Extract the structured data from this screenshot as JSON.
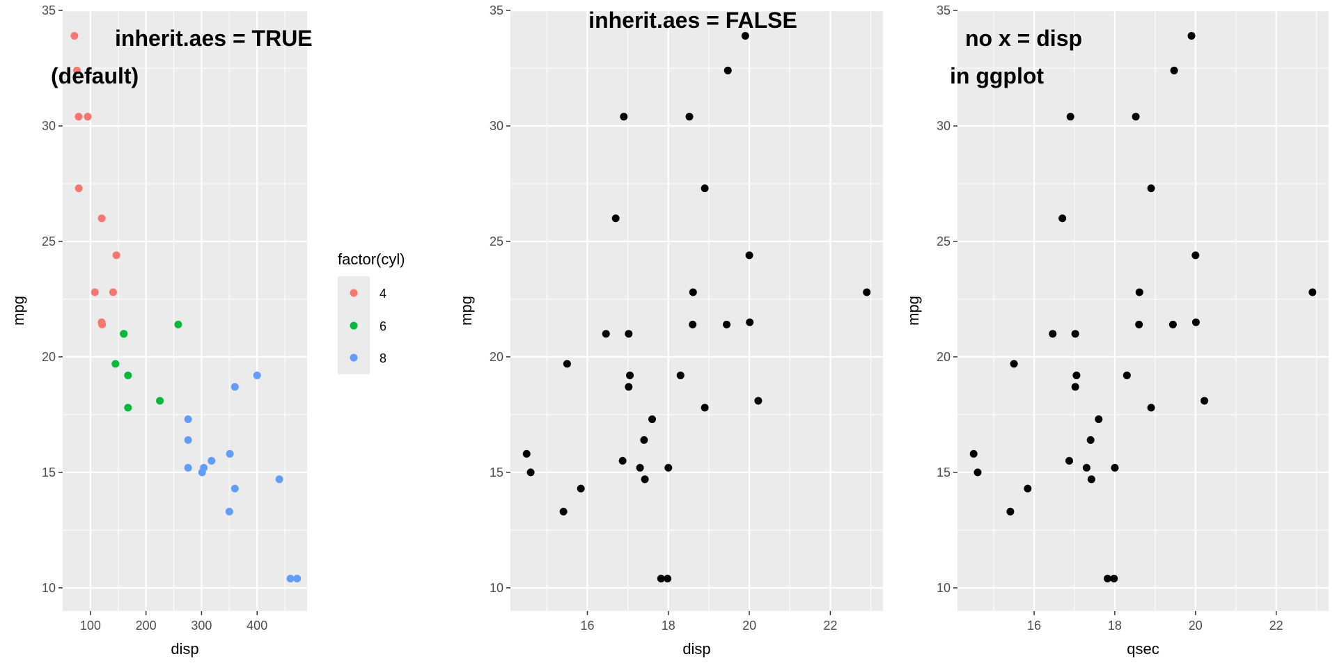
{
  "chart_data": [
    {
      "type": "scatter",
      "xlabel": "disp",
      "ylabel": "mpg",
      "xlim": [
        50,
        490
      ],
      "ylim": [
        9.0,
        35.0
      ],
      "x_ticks": [
        100,
        200,
        300,
        400
      ],
      "y_ticks": [
        10,
        15,
        20,
        25,
        30,
        35
      ],
      "grid": true,
      "annotation_lines": [
        "inherit.aes = TRUE",
        "(default)"
      ],
      "legend": {
        "title": "factor(cyl)",
        "position": "right",
        "entries": [
          {
            "label": "4",
            "color": "#F8766D"
          },
          {
            "label": "6",
            "color": "#00BA38"
          },
          {
            "label": "8",
            "color": "#619CFF"
          }
        ]
      },
      "series": [
        {
          "name": "4",
          "color": "#F8766D",
          "points": [
            [
              71.1,
              33.9
            ],
            [
              75.7,
              32.4
            ],
            [
              78.7,
              30.4
            ],
            [
              95.1,
              30.4
            ],
            [
              79.0,
              27.3
            ],
            [
              120.3,
              26.0
            ],
            [
              146.7,
              24.4
            ],
            [
              108.0,
              22.8
            ],
            [
              140.8,
              22.8
            ],
            [
              120.1,
              21.5
            ],
            [
              121.0,
              21.4
            ]
          ]
        },
        {
          "name": "6",
          "color": "#00BA38",
          "points": [
            [
              160.0,
              21.0
            ],
            [
              160.0,
              21.0
            ],
            [
              258.0,
              21.4
            ],
            [
              225.0,
              18.1
            ],
            [
              167.6,
              19.2
            ],
            [
              167.6,
              17.8
            ],
            [
              145.0,
              19.7
            ]
          ]
        },
        {
          "name": "8",
          "color": "#619CFF",
          "points": [
            [
              360.0,
              18.7
            ],
            [
              360.0,
              14.3
            ],
            [
              275.8,
              16.4
            ],
            [
              275.8,
              17.3
            ],
            [
              275.8,
              15.2
            ],
            [
              472.0,
              10.4
            ],
            [
              460.0,
              10.4
            ],
            [
              440.0,
              14.7
            ],
            [
              318.0,
              15.5
            ],
            [
              304.0,
              15.2
            ],
            [
              350.0,
              13.3
            ],
            [
              400.0,
              19.2
            ],
            [
              351.0,
              15.8
            ],
            [
              301.0,
              15.0
            ]
          ]
        }
      ]
    },
    {
      "type": "scatter",
      "xlabel": "disp",
      "ylabel": "mpg",
      "xlim": [
        14.1,
        23.3
      ],
      "ylim": [
        9.0,
        35.0
      ],
      "x_ticks": [
        16,
        18,
        20,
        22
      ],
      "y_ticks": [
        10,
        15,
        20,
        25,
        30,
        35
      ],
      "grid": true,
      "annotation_lines": [
        "inherit.aes = FALSE"
      ],
      "series": [
        {
          "name": "",
          "color": "#000000",
          "points": [
            [
              16.46,
              21.0
            ],
            [
              17.02,
              21.0
            ],
            [
              18.61,
              22.8
            ],
            [
              19.44,
              21.4
            ],
            [
              17.02,
              18.7
            ],
            [
              20.22,
              18.1
            ],
            [
              15.84,
              14.3
            ],
            [
              20.0,
              24.4
            ],
            [
              22.9,
              22.8
            ],
            [
              18.3,
              19.2
            ],
            [
              18.9,
              17.8
            ],
            [
              17.4,
              16.4
            ],
            [
              17.6,
              17.3
            ],
            [
              18.0,
              15.2
            ],
            [
              17.98,
              10.4
            ],
            [
              17.82,
              10.4
            ],
            [
              17.42,
              14.7
            ],
            [
              19.47,
              32.4
            ],
            [
              18.52,
              30.4
            ],
            [
              19.9,
              33.9
            ],
            [
              20.01,
              21.5
            ],
            [
              16.87,
              15.5
            ],
            [
              17.3,
              15.2
            ],
            [
              15.41,
              13.3
            ],
            [
              17.05,
              19.2
            ],
            [
              18.9,
              27.3
            ],
            [
              16.7,
              26.0
            ],
            [
              16.9,
              30.4
            ],
            [
              14.5,
              15.8
            ],
            [
              15.5,
              19.7
            ],
            [
              14.6,
              15.0
            ],
            [
              18.6,
              21.4
            ]
          ]
        }
      ]
    },
    {
      "type": "scatter",
      "xlabel": "qsec",
      "ylabel": "mpg",
      "xlim": [
        14.1,
        23.3
      ],
      "ylim": [
        9.0,
        35.0
      ],
      "x_ticks": [
        16,
        18,
        20,
        22
      ],
      "y_ticks": [
        10,
        15,
        20,
        25,
        30,
        35
      ],
      "grid": true,
      "annotation_lines": [
        "no x = disp",
        "in ggplot"
      ],
      "series": [
        {
          "name": "",
          "color": "#000000",
          "points": [
            [
              16.46,
              21.0
            ],
            [
              17.02,
              21.0
            ],
            [
              18.61,
              22.8
            ],
            [
              19.44,
              21.4
            ],
            [
              17.02,
              18.7
            ],
            [
              20.22,
              18.1
            ],
            [
              15.84,
              14.3
            ],
            [
              20.0,
              24.4
            ],
            [
              22.9,
              22.8
            ],
            [
              18.3,
              19.2
            ],
            [
              18.9,
              17.8
            ],
            [
              17.4,
              16.4
            ],
            [
              17.6,
              17.3
            ],
            [
              18.0,
              15.2
            ],
            [
              17.98,
              10.4
            ],
            [
              17.82,
              10.4
            ],
            [
              17.42,
              14.7
            ],
            [
              19.47,
              32.4
            ],
            [
              18.52,
              30.4
            ],
            [
              19.9,
              33.9
            ],
            [
              20.01,
              21.5
            ],
            [
              16.87,
              15.5
            ],
            [
              17.3,
              15.2
            ],
            [
              15.41,
              13.3
            ],
            [
              17.05,
              19.2
            ],
            [
              18.9,
              27.3
            ],
            [
              16.7,
              26.0
            ],
            [
              16.9,
              30.4
            ],
            [
              14.5,
              15.8
            ],
            [
              15.5,
              19.7
            ],
            [
              14.6,
              15.0
            ],
            [
              18.6,
              21.4
            ]
          ]
        }
      ]
    }
  ]
}
